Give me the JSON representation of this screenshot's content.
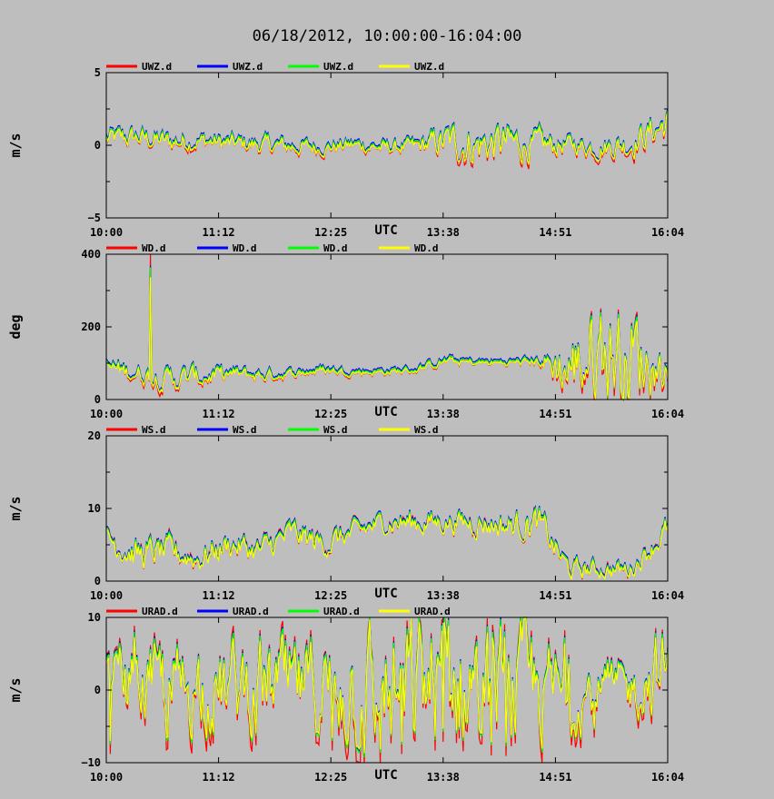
{
  "title": "06/18/2012, 10:00:00-16:04:00",
  "colors": {
    "background": "#bebebe",
    "series": [
      "#ff0000",
      "#0000ff",
      "#00ff00",
      "#ffff00"
    ]
  },
  "chart_data": [
    {
      "type": "line",
      "title": "",
      "ylabel": "m/s",
      "xlabel": "UTC",
      "x_ticks": [
        "10:00",
        "11:12",
        "12:25",
        "13:38",
        "14:51",
        "16:04"
      ],
      "ylim": [
        -5,
        5
      ],
      "y_ticks": [
        "5",
        "0",
        "−5"
      ],
      "legend": [
        "UWZ.d",
        "UWZ.d",
        "UWZ.d",
        "UWZ.d"
      ],
      "x": [
        "10:00",
        "10:20",
        "10:40",
        "11:00",
        "11:20",
        "11:40",
        "12:00",
        "12:20",
        "12:40",
        "13:00",
        "13:20",
        "13:40",
        "14:00",
        "14:20",
        "14:40",
        "15:00",
        "15:20",
        "15:40",
        "16:04"
      ],
      "values": [
        0.4,
        0.5,
        0.2,
        0.3,
        0.1,
        0.0,
        -0.1,
        -0.2,
        0.0,
        -0.2,
        -0.1,
        0.2,
        0.0,
        0.1,
        -0.1,
        0.0,
        -0.2,
        0.1,
        1.5
      ],
      "spread": [
        0.6,
        0.6,
        0.6,
        0.5,
        0.5,
        0.5,
        0.5,
        0.4,
        0.4,
        0.4,
        0.4,
        1.0,
        1.2,
        1.1,
        0.8,
        0.5,
        0.6,
        0.8,
        1.0
      ]
    },
    {
      "type": "line",
      "title": "",
      "ylabel": "deg",
      "xlabel": "UTC",
      "x_ticks": [
        "10:00",
        "11:12",
        "12:25",
        "13:38",
        "14:51",
        "16:04"
      ],
      "ylim": [
        0,
        400
      ],
      "y_ticks": [
        "400",
        "200",
        "0"
      ],
      "legend": [
        "WD.d",
        "WD.d",
        "WD.d",
        "WD.d"
      ],
      "x": [
        "10:00",
        "10:20",
        "10:40",
        "11:00",
        "11:20",
        "11:40",
        "12:00",
        "12:20",
        "12:40",
        "13:00",
        "13:20",
        "13:40",
        "14:00",
        "14:20",
        "14:40",
        "15:00",
        "15:20",
        "15:40",
        "16:04"
      ],
      "values": [
        90,
        70,
        55,
        60,
        70,
        65,
        70,
        80,
        75,
        75,
        80,
        105,
        100,
        100,
        105,
        80,
        140,
        120,
        80
      ],
      "spread": [
        20,
        20,
        25,
        25,
        15,
        15,
        10,
        10,
        8,
        8,
        8,
        10,
        8,
        8,
        10,
        80,
        120,
        120,
        30
      ]
    },
    {
      "type": "line",
      "title": "",
      "ylabel": "m/s",
      "xlabel": "UTC",
      "x_ticks": [
        "10:00",
        "11:12",
        "12:25",
        "13:38",
        "14:51",
        "16:04"
      ],
      "ylim": [
        0,
        20
      ],
      "y_ticks": [
        "20",
        "10",
        "0"
      ],
      "legend": [
        "WS.d",
        "WS.d",
        "WS.d",
        "WS.d"
      ],
      "x": [
        "10:00",
        "10:20",
        "10:40",
        "11:00",
        "11:20",
        "11:40",
        "12:00",
        "12:20",
        "12:40",
        "13:00",
        "13:20",
        "13:40",
        "14:00",
        "14:20",
        "14:40",
        "15:00",
        "15:20",
        "15:40",
        "16:04"
      ],
      "values": [
        6.0,
        3.5,
        4.0,
        3.0,
        5.0,
        4.0,
        6.5,
        5.0,
        6.5,
        8.0,
        8.0,
        8.0,
        8.0,
        7.5,
        8.0,
        1.5,
        1.5,
        1.5,
        7.0
      ],
      "spread": [
        1.5,
        1.8,
        1.5,
        1.5,
        1.5,
        1.5,
        1.5,
        1.5,
        1.2,
        1.2,
        1.5,
        1.2,
        1.5,
        1.5,
        1.8,
        1.2,
        1.0,
        1.0,
        1.5
      ]
    },
    {
      "type": "line",
      "title": "",
      "ylabel": "m/s",
      "xlabel": "UTC",
      "x_ticks": [
        "10:00",
        "11:12",
        "12:25",
        "13:38",
        "14:51",
        "16:04"
      ],
      "ylim": [
        -10,
        10
      ],
      "y_ticks": [
        "10",
        "0",
        "−10"
      ],
      "legend": [
        "URAD.d",
        "URAD.d",
        "URAD.d",
        "URAD.d"
      ],
      "x": [
        "10:00",
        "10:20",
        "10:40",
        "11:00",
        "11:20",
        "11:40",
        "12:00",
        "12:20",
        "12:40",
        "13:00",
        "13:20",
        "13:40",
        "14:00",
        "14:20",
        "14:40",
        "15:00",
        "15:20",
        "15:40",
        "16:04"
      ],
      "values": [
        0.0,
        1.0,
        0.0,
        1.0,
        0.0,
        1.0,
        0.0,
        0.0,
        1.0,
        -1.0,
        0.0,
        2.0,
        0.0,
        0.0,
        0.0,
        -1.0,
        0.0,
        0.0,
        3.0
      ],
      "spread": [
        4.0,
        4.0,
        5.0,
        5.0,
        5.0,
        5.0,
        5.0,
        5.0,
        7.0,
        8.0,
        8.0,
        8.0,
        7.0,
        7.0,
        6.0,
        4.0,
        3.0,
        3.0,
        5.0
      ]
    }
  ]
}
